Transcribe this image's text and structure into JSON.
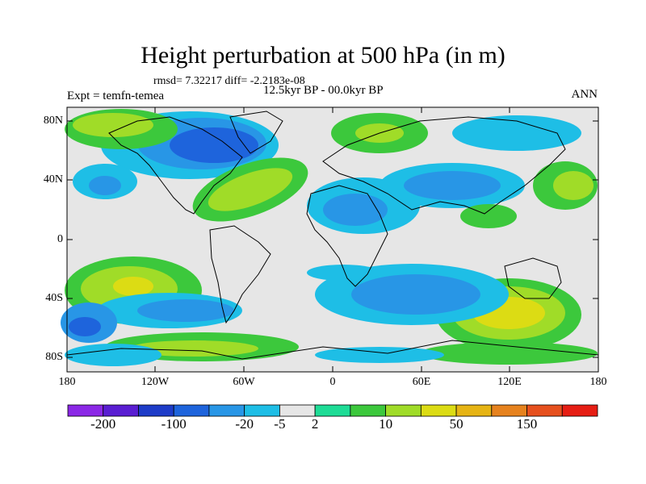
{
  "title": "Height perturbation at 500 hPa (in m)",
  "stats": "rmsd= 7.32217 diff= -2.2183e-08",
  "expt": "Expt = temfn-temea",
  "period": "12.5kyr BP - 00.0kyr BP",
  "season": "ANN",
  "lat_ticks": [
    "80N",
    "40N",
    "0",
    "40S",
    "80S"
  ],
  "lon_ticks": [
    "180",
    "120W",
    "60W",
    "0",
    "60E",
    "120E",
    "180"
  ],
  "colorbar": {
    "labels": [
      "-200",
      "-100",
      "-20",
      "-5",
      "2",
      "10",
      "50",
      "150"
    ],
    "colors": [
      "#8b28e6",
      "#5a1ed2",
      "#1e3cc8",
      "#1e64dc",
      "#2896e6",
      "#1ebee6",
      "#e6e6e6",
      "#1edc96",
      "#3cc83c",
      "#a0dc28",
      "#dcdc14",
      "#e6b414",
      "#e6821e",
      "#e6501e",
      "#e61e14"
    ]
  },
  "colors": {
    "land_outline": "#000000",
    "neutral": "#e6e6e6"
  }
}
